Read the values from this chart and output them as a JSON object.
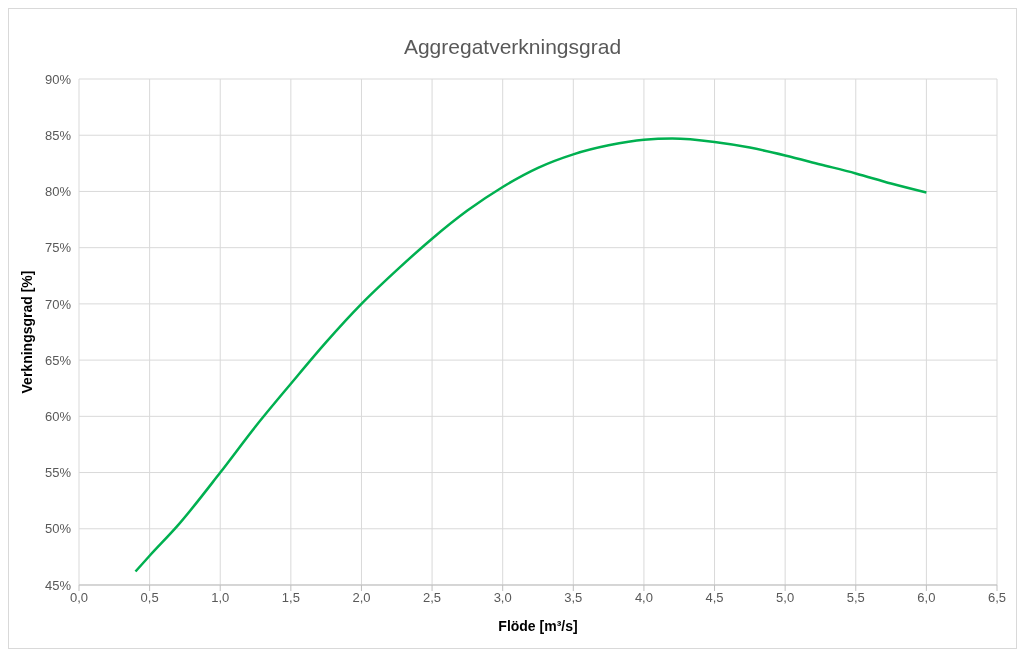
{
  "chart_data": {
    "type": "line",
    "title": "Aggregatverkningsgrad",
    "xlabel": "Flöde [m³/s]",
    "ylabel": "Verkningsgrad [%]",
    "x": [
      0.4,
      0.5,
      0.7,
      1.0,
      1.25,
      1.5,
      1.75,
      2.0,
      2.25,
      2.5,
      2.75,
      3.0,
      3.25,
      3.5,
      3.75,
      4.0,
      4.2,
      4.5,
      4.75,
      5.0,
      5.25,
      5.5,
      5.75,
      6.0
    ],
    "series": [
      {
        "color": "#00b050",
        "values": [
          46.2,
          47.6,
          50.3,
          55.0,
          59.1,
          62.9,
          66.6,
          70.0,
          73.0,
          75.8,
          78.3,
          80.4,
          82.1,
          83.3,
          84.1,
          84.6,
          84.7,
          84.4,
          83.9,
          83.2,
          82.4,
          81.6,
          80.7,
          79.9
        ]
      }
    ],
    "xlim": [
      0,
      6.5
    ],
    "xticks": [
      {
        "value": 0,
        "label": "0,0"
      },
      {
        "value": 0.5,
        "label": "0,5"
      },
      {
        "value": 1,
        "label": "1,0"
      },
      {
        "value": 1.5,
        "label": "1,5"
      },
      {
        "value": 2,
        "label": "2,0"
      },
      {
        "value": 2.5,
        "label": "2,5"
      },
      {
        "value": 3,
        "label": "3,0"
      },
      {
        "value": 3.5,
        "label": "3,5"
      },
      {
        "value": 4,
        "label": "4,0"
      },
      {
        "value": 4.5,
        "label": "4,5"
      },
      {
        "value": 5,
        "label": "5,0"
      },
      {
        "value": 5.5,
        "label": "5,5"
      },
      {
        "value": 6,
        "label": "6,0"
      },
      {
        "value": 6.5,
        "label": "6,5"
      }
    ],
    "ylim": [
      45,
      90
    ],
    "yticks": [
      {
        "value": 45,
        "label": "45%"
      },
      {
        "value": 50,
        "label": "50%"
      },
      {
        "value": 55,
        "label": "55%"
      },
      {
        "value": 60,
        "label": "60%"
      },
      {
        "value": 65,
        "label": "65%"
      },
      {
        "value": 70,
        "label": "70%"
      },
      {
        "value": 75,
        "label": "75%"
      },
      {
        "value": 80,
        "label": "80%"
      },
      {
        "value": 85,
        "label": "85%"
      },
      {
        "value": 90,
        "label": "90%"
      }
    ],
    "grid": true,
    "legend": false,
    "marker": "none",
    "line_style": "solid"
  }
}
